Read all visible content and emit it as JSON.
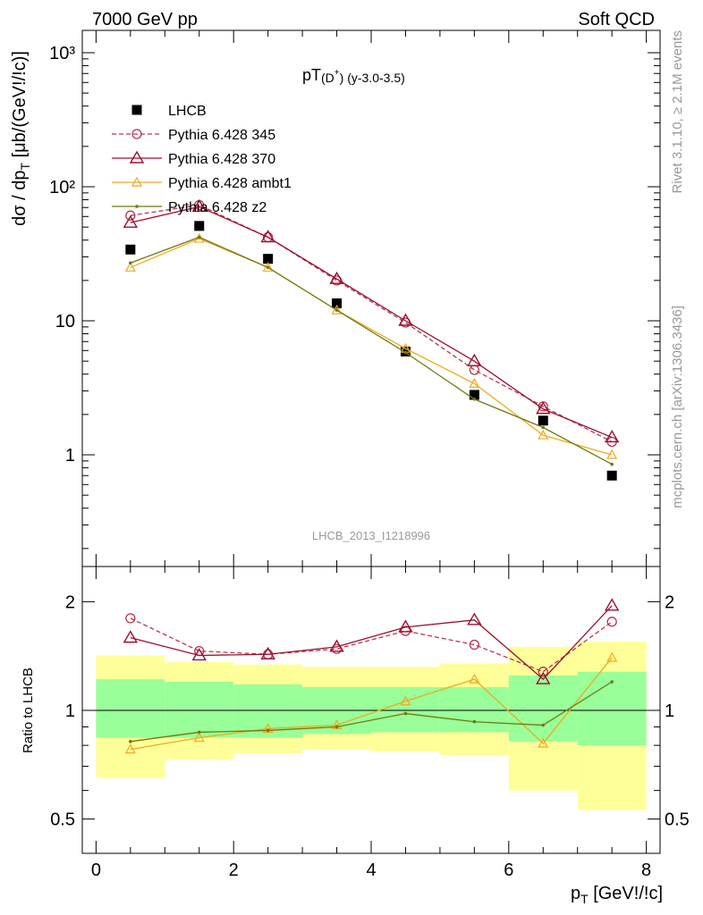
{
  "header": {
    "left": "7000 GeV pp",
    "right": "Soft QCD"
  },
  "side_labels": {
    "rivet": "Rivet 3.1.10, ≥ 2.1M events",
    "mcplots": "mcplots.cern.ch [arXiv:1306.3436]"
  },
  "colors": {
    "lhcb": "#000000",
    "p345": "#b5374f",
    "p370": "#9b1030",
    "ambt1": "#f0a820",
    "z2": "#707a10",
    "band_inner": "#99ff99",
    "band_outer": "#ffff99"
  },
  "chart_data": [
    {
      "type": "scatter",
      "panel": "main",
      "title_main": "pT",
      "title_sub": "(D",
      "title_sup": "+",
      "title_tail": ") (y-3.0-3.5)",
      "watermark": "LHCB_2013_I1218996",
      "ylabel": "dσ / dp_T [μb/(GeV!/!c)]",
      "yscale": "log",
      "ylim": [
        0.15,
        1300
      ],
      "xlim": [
        -0.2,
        8.2
      ],
      "yticks": [
        {
          "v": 1,
          "label": "1"
        },
        {
          "v": 10,
          "label": "10"
        },
        {
          "v": 100,
          "label": "10²"
        },
        {
          "v": 1000,
          "label": "10³"
        }
      ],
      "x": [
        0.5,
        1.5,
        2.5,
        3.5,
        4.5,
        5.5,
        6.5,
        7.5
      ],
      "series": [
        {
          "name": "LHCB",
          "key": "lhcb",
          "marker": "square",
          "line": "none",
          "values": [
            34,
            51,
            29,
            13.5,
            5.9,
            2.8,
            1.8,
            0.7
          ]
        },
        {
          "name": "Pythia 6.428 345",
          "key": "p345",
          "marker": "circle",
          "line": "dashed",
          "values": [
            61,
            73,
            42,
            20,
            9.7,
            4.3,
            2.3,
            1.25
          ]
        },
        {
          "name": "Pythia 6.428 370",
          "key": "p370",
          "marker": "triangle",
          "line": "solid",
          "values": [
            54,
            71,
            42,
            20.5,
            10,
            5,
            2.2,
            1.35
          ]
        },
        {
          "name": "Pythia 6.428 ambt1",
          "key": "ambt1",
          "marker": "triangle-small",
          "line": "solid",
          "values": [
            25,
            41,
            25,
            12,
            6.2,
            3.4,
            1.4,
            1.0
          ]
        },
        {
          "name": "Pythia 6.428 z2",
          "key": "z2",
          "marker": "dot",
          "line": "solid",
          "values": [
            27,
            42,
            25,
            12,
            5.8,
            2.6,
            1.6,
            0.85
          ]
        }
      ]
    },
    {
      "type": "line",
      "panel": "ratio",
      "ylabel": "Ratio to LHCB",
      "yscale": "log",
      "ylim": [
        0.4,
        2.4
      ],
      "xlim": [
        -0.2,
        8.2
      ],
      "xlabel": "p_T [GeV!/!c]",
      "yticks": [
        {
          "v": 0.5,
          "label": "0.5"
        },
        {
          "v": 1,
          "label": "1"
        },
        {
          "v": 2,
          "label": "2"
        }
      ],
      "xticks": [
        0,
        2,
        4,
        6,
        8
      ],
      "bands": {
        "edges": [
          0,
          1,
          2,
          3,
          4,
          5,
          6,
          7,
          8
        ],
        "inner_low": [
          0.84,
          0.84,
          0.84,
          0.86,
          0.87,
          0.87,
          0.82,
          0.8
        ],
        "inner_high": [
          1.22,
          1.2,
          1.18,
          1.16,
          1.16,
          1.16,
          1.25,
          1.28
        ],
        "outer_low": [
          0.65,
          0.73,
          0.76,
          0.78,
          0.77,
          0.75,
          0.6,
          0.53
        ],
        "outer_high": [
          1.42,
          1.36,
          1.34,
          1.32,
          1.32,
          1.35,
          1.5,
          1.55
        ]
      },
      "x": [
        0.5,
        1.5,
        2.5,
        3.5,
        4.5,
        5.5,
        6.5,
        7.5
      ],
      "series": [
        {
          "name": "Pythia 6.428 345",
          "key": "p345",
          "marker": "circle",
          "line": "dashed",
          "values": [
            1.8,
            1.46,
            1.43,
            1.48,
            1.66,
            1.52,
            1.28,
            1.76
          ]
        },
        {
          "name": "Pythia 6.428 370",
          "key": "p370",
          "marker": "triangle",
          "line": "solid",
          "values": [
            1.59,
            1.42,
            1.43,
            1.5,
            1.7,
            1.78,
            1.22,
            1.95
          ]
        },
        {
          "name": "Pythia 6.428 ambt1",
          "key": "ambt1",
          "marker": "triangle-small",
          "line": "solid",
          "values": [
            0.78,
            0.84,
            0.89,
            0.91,
            1.06,
            1.22,
            0.81,
            1.4
          ]
        },
        {
          "name": "Pythia 6.428 z2",
          "key": "z2",
          "marker": "dot",
          "line": "solid",
          "values": [
            0.82,
            0.87,
            0.88,
            0.9,
            0.98,
            0.93,
            0.91,
            1.2
          ]
        }
      ]
    }
  ]
}
